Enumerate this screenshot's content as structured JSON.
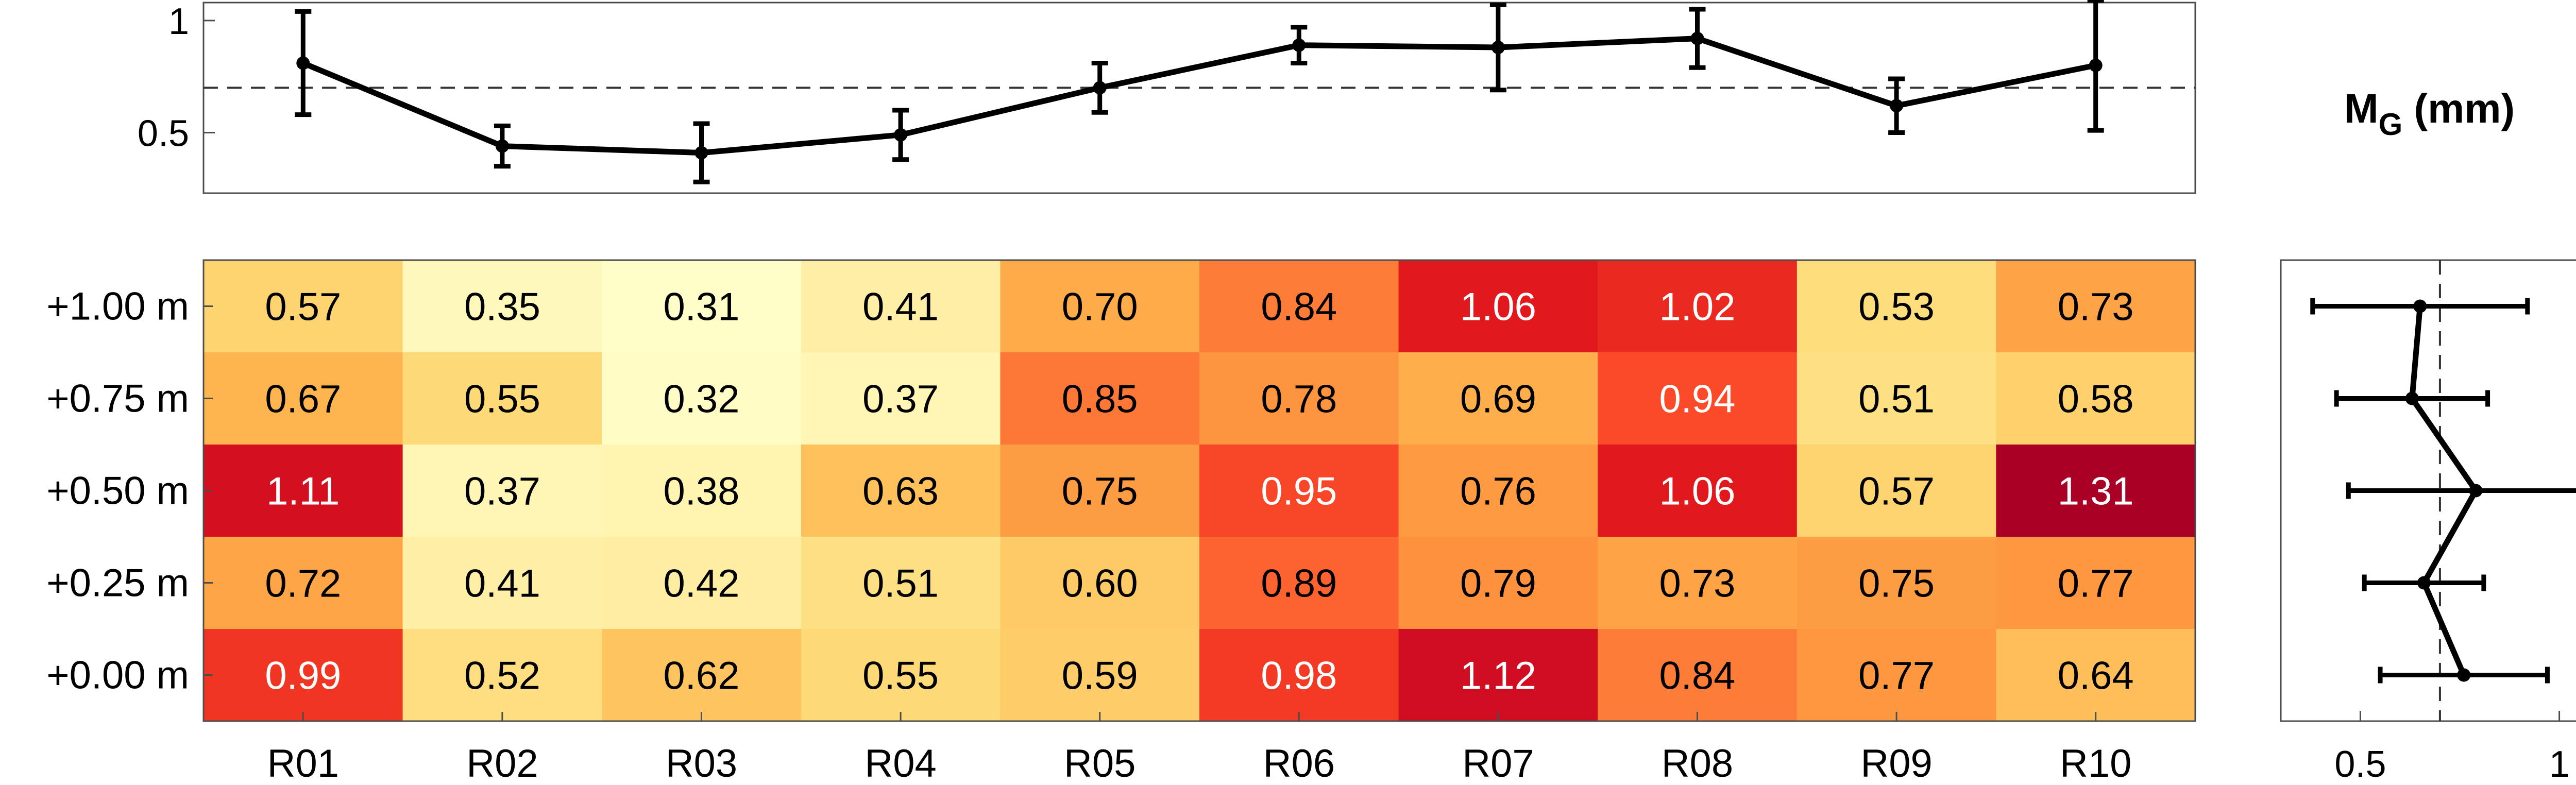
{
  "chart_data": [
    {
      "type": "line",
      "x": [
        "R01",
        "R02",
        "R03",
        "R04",
        "R05",
        "R06",
        "R07",
        "R08",
        "R09",
        "R10"
      ],
      "values": [
        0.81,
        0.44,
        0.41,
        0.49,
        0.7,
        0.89,
        0.88,
        0.92,
        0.62,
        0.8
      ],
      "error": [
        0.23,
        0.09,
        0.13,
        0.11,
        0.11,
        0.08,
        0.19,
        0.13,
        0.12,
        0.29
      ],
      "reference_line": 0.7,
      "ylim": [
        0.23,
        1.08
      ],
      "yticks": [
        0.5,
        1
      ],
      "ytick_labels": [
        "0.5",
        "1"
      ],
      "grid": false,
      "color": "#000000"
    },
    {
      "type": "heatmap",
      "rows": [
        "+1.00 m",
        "+0.75 m",
        "+0.50 m",
        "+0.25 m",
        "+0.00 m"
      ],
      "columns": [
        "R01",
        "R02",
        "R03",
        "R04",
        "R05",
        "R06",
        "R07",
        "R08",
        "R09",
        "R10"
      ],
      "values": [
        [
          0.57,
          0.35,
          0.31,
          0.41,
          0.7,
          0.84,
          1.06,
          1.02,
          0.53,
          0.73
        ],
        [
          0.67,
          0.55,
          0.32,
          0.37,
          0.85,
          0.78,
          0.69,
          0.94,
          0.51,
          0.58
        ],
        [
          1.11,
          0.37,
          0.38,
          0.63,
          0.75,
          0.95,
          0.76,
          1.06,
          0.57,
          1.31
        ],
        [
          0.72,
          0.41,
          0.42,
          0.51,
          0.6,
          0.89,
          0.79,
          0.73,
          0.75,
          0.77
        ],
        [
          0.99,
          0.52,
          0.62,
          0.55,
          0.59,
          0.98,
          1.12,
          0.84,
          0.77,
          0.64
        ]
      ],
      "colorscale": "YlOrRd",
      "vmin": 0.3,
      "vmax": 1.31
    },
    {
      "type": "line",
      "orientation": "horizontal",
      "y": [
        "+1.00 m",
        "+0.75 m",
        "+0.50 m",
        "+0.25 m",
        "+0.00 m"
      ],
      "values": [
        0.65,
        0.63,
        0.79,
        0.66,
        0.76
      ],
      "error": [
        0.27,
        0.19,
        0.32,
        0.15,
        0.21
      ],
      "reference_line": 0.7,
      "xlim": [
        0.3,
        1.13
      ],
      "xticks": [
        0.5,
        1
      ],
      "xtick_labels": [
        "0.5",
        "1"
      ],
      "color": "#000000"
    }
  ],
  "legend": {
    "label_main": "M",
    "label_sub": "G",
    "label_unit": " (mm)"
  }
}
